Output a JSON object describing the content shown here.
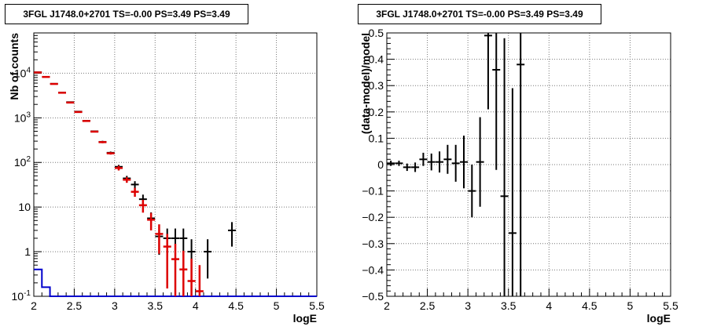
{
  "chart_data": [
    {
      "type": "scatter",
      "title": "3FGL J1748.0+2701 TS=-0.00 PS=3.49 PS=3.49",
      "xlabel": "logE",
      "ylabel": "Nb of counts",
      "xlim": [
        2,
        5.5
      ],
      "ylim": [
        0.1,
        80000
      ],
      "yscale": "log",
      "grid": true,
      "xticks": [
        "2",
        "2.5",
        "3",
        "3.5",
        "4",
        "4.5",
        "5",
        "5.5"
      ],
      "yticks": [
        "10^{-1}",
        "1",
        "10",
        "10^{2}",
        "10^{3}",
        "10^{4}"
      ],
      "colors": {
        "data": "#000000",
        "model": "#dd0000",
        "background": "#0000cc"
      },
      "series": [
        {
          "kind": "data-errorbars",
          "x": [
            2.05,
            2.15,
            2.25,
            2.35,
            2.45,
            2.55,
            2.65,
            2.75,
            2.85,
            2.95,
            3.05,
            3.15,
            3.25,
            3.35,
            3.45,
            3.55,
            3.65,
            3.75,
            3.85,
            3.95,
            4.05,
            4.15,
            4.45
          ],
          "y": [
            10500,
            8300,
            5800,
            3700,
            2250,
            1380,
            860,
            500,
            290,
            165,
            80,
            44,
            32,
            15,
            5.6,
            2.2,
            2.0,
            2.0,
            2.0,
            1.0,
            0.1,
            1.0,
            3.0
          ],
          "ylo": [
            10300,
            8100,
            5650,
            3600,
            2180,
            1330,
            830,
            480,
            275,
            155,
            72,
            38,
            26,
            11,
            3.4,
            0.85,
            0.8,
            0.8,
            0.8,
            0.25,
            0.1,
            0.25,
            1.3
          ],
          "yhi": [
            10700,
            8500,
            5950,
            3800,
            2320,
            1430,
            890,
            520,
            305,
            175,
            88,
            50,
            38,
            19,
            7.6,
            3.6,
            3.3,
            3.3,
            3.3,
            1.9,
            0.1,
            1.9,
            4.6
          ]
        },
        {
          "kind": "model-errorbars",
          "x": [
            2.05,
            2.15,
            2.25,
            2.35,
            2.45,
            2.55,
            2.65,
            2.75,
            2.85,
            2.95,
            3.05,
            3.15,
            3.25,
            3.35,
            3.45,
            3.55,
            3.65,
            3.75,
            3.85,
            3.95,
            4.05
          ],
          "y": [
            10400,
            8250,
            5750,
            3650,
            2200,
            1350,
            850,
            490,
            285,
            160,
            75,
            41,
            22,
            11,
            5.2,
            2.5,
            1.3,
            0.68,
            0.4,
            0.22,
            0.13
          ],
          "ylo": [
            10200,
            8050,
            5600,
            3550,
            2130,
            1300,
            820,
            470,
            270,
            150,
            66,
            35,
            17,
            7.5,
            3.0,
            0.9,
            0.15,
            0.1,
            0.1,
            0.1,
            0.1
          ],
          "yhi": [
            10600,
            8450,
            5900,
            3750,
            2270,
            1400,
            880,
            510,
            300,
            170,
            84,
            47,
            27,
            14.5,
            7.4,
            4.1,
            2.5,
            1.5,
            1.05,
            0.7,
            0.5
          ]
        },
        {
          "kind": "background-histogram",
          "x_edges": [
            2.0,
            2.1,
            2.2,
            2.3,
            2.4,
            2.5,
            2.6,
            2.7,
            2.8,
            2.9,
            3.0,
            3.1,
            3.2,
            3.3,
            3.4,
            3.5,
            3.6,
            3.7,
            3.8,
            3.9,
            4.0,
            4.1,
            4.2,
            4.3,
            4.4,
            4.5,
            4.6,
            4.7,
            4.8,
            4.9,
            5.0,
            5.1,
            5.2,
            5.3,
            5.4,
            5.5
          ],
          "values": [
            0.4,
            0.16,
            0.1,
            0.1,
            0.1,
            0.1,
            0.1,
            0.1,
            0.1,
            0.1,
            0.1,
            0.1,
            0.1,
            0.1,
            0.1,
            0.1,
            0.1,
            0.1,
            0.1,
            0.1,
            0.1,
            0.1,
            0.1,
            0.1,
            0.1,
            0.1,
            0.1,
            0.1,
            0.1,
            0.1,
            0.1,
            0.1,
            0.1,
            0.1,
            0.1
          ]
        }
      ]
    },
    {
      "type": "scatter",
      "title": "3FGL J1748.0+2701 TS=-0.00 PS=3.49 PS=3.49",
      "xlabel": "logE",
      "ylabel": "(data-model)/model",
      "xlim": [
        2,
        5.5
      ],
      "ylim": [
        -0.5,
        0.5
      ],
      "grid": true,
      "xticks": [
        "2",
        "2.5",
        "3",
        "3.5",
        "4",
        "4.5",
        "5",
        "5.5"
      ],
      "yticks": [
        "−0.5",
        "−0.4",
        "−0.3",
        "−0.2",
        "−0.1",
        "0",
        "0.1",
        "0.2",
        "0.3",
        "0.4",
        "0.5"
      ],
      "series": [
        {
          "kind": "residual-errorbars",
          "x": [
            2.05,
            2.15,
            2.25,
            2.35,
            2.45,
            2.55,
            2.65,
            2.75,
            2.85,
            2.95,
            3.05,
            3.15,
            3.25,
            3.35,
            3.45,
            3.55,
            3.65
          ],
          "y": [
            0.005,
            0.005,
            -0.01,
            -0.01,
            0.02,
            0.01,
            0.01,
            0.02,
            0.005,
            0.01,
            -0.1,
            0.01,
            0.49,
            0.36,
            -0.12,
            -0.26,
            0.38
          ],
          "err": [
            0.01,
            0.01,
            0.014,
            0.018,
            0.025,
            0.032,
            0.04,
            0.055,
            0.07,
            0.1,
            0.1,
            0.17,
            0.28,
            0.38,
            0.6,
            0.55,
            0.9
          ]
        }
      ]
    }
  ]
}
